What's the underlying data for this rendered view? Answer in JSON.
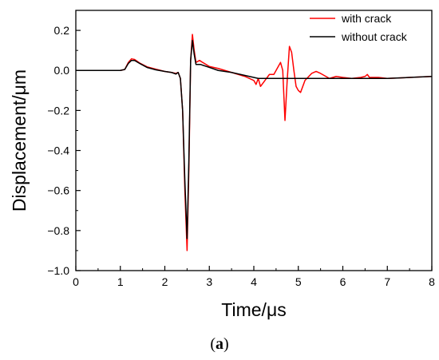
{
  "chart_data": {
    "type": "line",
    "xlabel": "Time/μs",
    "ylabel": "Displacement/μm",
    "caption_open": "(",
    "caption_letter": "a",
    "caption_close": ")",
    "xlim": [
      0,
      8
    ],
    "ylim": [
      -1.0,
      0.3
    ],
    "x_ticks": [
      0,
      1,
      2,
      3,
      4,
      5,
      6,
      7,
      8
    ],
    "x_tick_labels": [
      "0",
      "1",
      "2",
      "3",
      "4",
      "5",
      "6",
      "7",
      "8"
    ],
    "y_ticks": [
      0.2,
      0.0,
      -0.2,
      -0.4,
      -0.6,
      -0.8,
      -1.0
    ],
    "y_tick_labels": [
      "0.2",
      "0.0",
      "−0.2",
      "−0.4",
      "−0.6",
      "−0.8",
      "−1.0"
    ],
    "grid": false,
    "legend_position": "top-right",
    "series": [
      {
        "name": "with crack",
        "color": "#ff0000",
        "points": [
          [
            0,
            0
          ],
          [
            0.5,
            0
          ],
          [
            1.0,
            0
          ],
          [
            1.1,
            0.005
          ],
          [
            1.18,
            0.04
          ],
          [
            1.25,
            0.058
          ],
          [
            1.32,
            0.055
          ],
          [
            1.45,
            0.035
          ],
          [
            1.6,
            0.018
          ],
          [
            1.8,
            0.006
          ],
          [
            2.0,
            -0.005
          ],
          [
            2.15,
            -0.01
          ],
          [
            2.25,
            -0.015
          ],
          [
            2.3,
            -0.01
          ],
          [
            2.35,
            -0.04
          ],
          [
            2.4,
            -0.2
          ],
          [
            2.45,
            -0.6
          ],
          [
            2.5,
            -0.9
          ],
          [
            2.54,
            -0.5
          ],
          [
            2.58,
            0.05
          ],
          [
            2.62,
            0.18
          ],
          [
            2.66,
            0.1
          ],
          [
            2.7,
            0.04
          ],
          [
            2.78,
            0.05
          ],
          [
            2.85,
            0.04
          ],
          [
            3.0,
            0.02
          ],
          [
            3.2,
            0.01
          ],
          [
            3.5,
            -0.01
          ],
          [
            3.8,
            -0.03
          ],
          [
            4.0,
            -0.05
          ],
          [
            4.05,
            -0.07
          ],
          [
            4.1,
            -0.04
          ],
          [
            4.15,
            -0.08
          ],
          [
            4.25,
            -0.05
          ],
          [
            4.35,
            -0.02
          ],
          [
            4.45,
            -0.02
          ],
          [
            4.55,
            0.02
          ],
          [
            4.6,
            0.04
          ],
          [
            4.65,
            0.0
          ],
          [
            4.7,
            -0.25
          ],
          [
            4.75,
            -0.05
          ],
          [
            4.8,
            0.12
          ],
          [
            4.85,
            0.09
          ],
          [
            4.9,
            0.0
          ],
          [
            4.95,
            -0.08
          ],
          [
            5.0,
            -0.1
          ],
          [
            5.05,
            -0.11
          ],
          [
            5.15,
            -0.05
          ],
          [
            5.3,
            -0.015
          ],
          [
            5.4,
            -0.005
          ],
          [
            5.5,
            -0.015
          ],
          [
            5.7,
            -0.04
          ],
          [
            5.85,
            -0.03
          ],
          [
            6.0,
            -0.035
          ],
          [
            6.2,
            -0.04
          ],
          [
            6.4,
            -0.035
          ],
          [
            6.5,
            -0.03
          ],
          [
            6.55,
            -0.02
          ],
          [
            6.6,
            -0.035
          ],
          [
            6.8,
            -0.035
          ],
          [
            7.0,
            -0.04
          ],
          [
            7.5,
            -0.035
          ],
          [
            8.0,
            -0.03
          ]
        ]
      },
      {
        "name": "without crack",
        "color": "#000000",
        "points": [
          [
            0,
            0
          ],
          [
            0.5,
            0
          ],
          [
            1.0,
            0
          ],
          [
            1.1,
            0.005
          ],
          [
            1.18,
            0.035
          ],
          [
            1.25,
            0.05
          ],
          [
            1.32,
            0.05
          ],
          [
            1.45,
            0.033
          ],
          [
            1.6,
            0.015
          ],
          [
            1.8,
            0.003
          ],
          [
            2.0,
            -0.005
          ],
          [
            2.15,
            -0.01
          ],
          [
            2.25,
            -0.018
          ],
          [
            2.3,
            -0.01
          ],
          [
            2.35,
            -0.04
          ],
          [
            2.4,
            -0.2
          ],
          [
            2.45,
            -0.55
          ],
          [
            2.5,
            -0.84
          ],
          [
            2.54,
            -0.45
          ],
          [
            2.58,
            0.05
          ],
          [
            2.62,
            0.15
          ],
          [
            2.66,
            0.08
          ],
          [
            2.7,
            0.03
          ],
          [
            2.8,
            0.03
          ],
          [
            3.0,
            0.015
          ],
          [
            3.2,
            0.0
          ],
          [
            3.5,
            -0.01
          ],
          [
            3.8,
            -0.025
          ],
          [
            4.0,
            -0.035
          ],
          [
            4.1,
            -0.04
          ],
          [
            4.5,
            -0.04
          ],
          [
            5.0,
            -0.04
          ],
          [
            5.5,
            -0.04
          ],
          [
            6.0,
            -0.04
          ],
          [
            6.5,
            -0.04
          ],
          [
            7.0,
            -0.04
          ],
          [
            7.5,
            -0.035
          ],
          [
            8.0,
            -0.03
          ]
        ]
      }
    ]
  }
}
